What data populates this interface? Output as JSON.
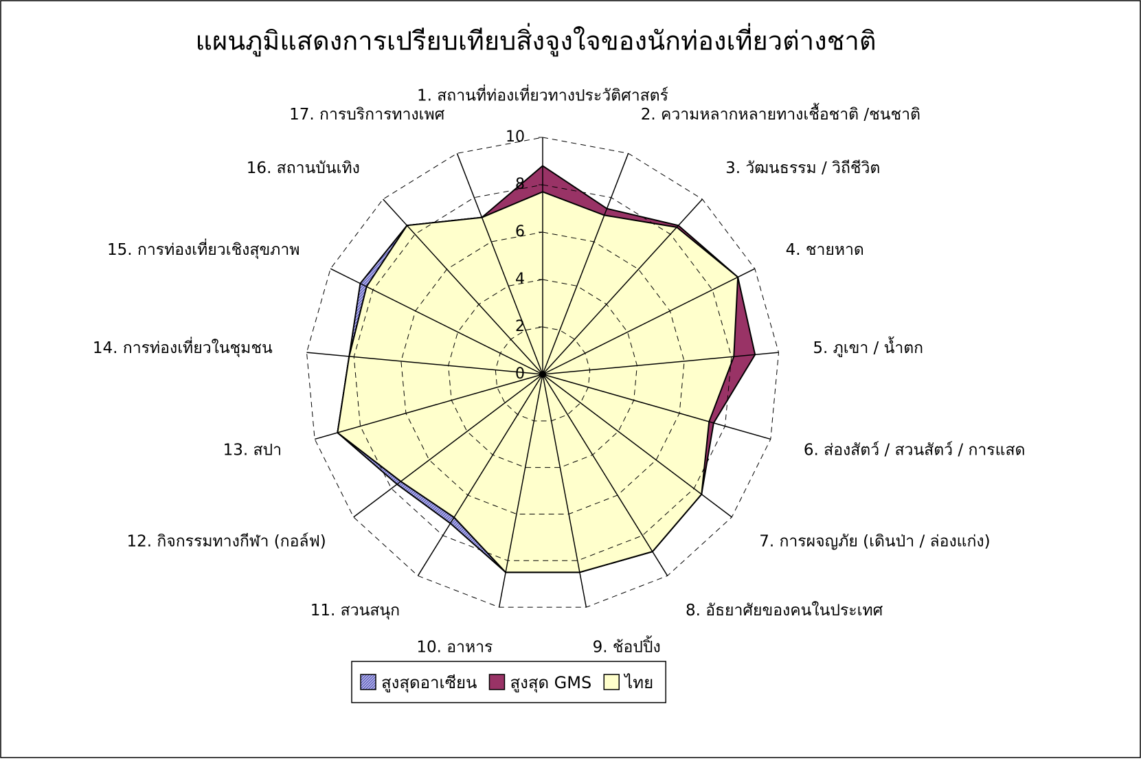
{
  "chart_data": {
    "type": "radar",
    "title": "แผนภูมิแสดงการเปรียบเทียบสิ่งจูงใจของนักท่องเที่ยวต่างชาติ",
    "categories": [
      "1. สถานที่ท่องเที่ยวทางประวัติศาสตร์",
      "2. ความหลากหลายทางเชื้อชาติ /ชนชาติ",
      "3. วัฒนธรรม / วิถีชีวิต",
      "4. ชายหาด",
      "5. ภูเขา / น้ำตก",
      "6. ส่องสัตว์ / สวนสัตว์ / การแสด",
      "7. การผจญภัย (เดินป่า / ล่องแก่ง)",
      "8. อัธยาศัยของคนในประเทศ",
      "9. ช้อปปิ้ง",
      "10. อาหาร",
      "11. สวนสนุก",
      "12. กิจกรรมทางกีฬา (กอล์ฟ)",
      "13. สปา",
      "14. การท่องเที่ยวในชุมชน",
      "15. การท่องเที่ยวเชิงสุขภาพ",
      "16. สถานบันเทิง",
      "17. การบริการทางเพศ"
    ],
    "series": [
      {
        "name": "สูงสุดอาเซียน",
        "color": "#b4b4e6",
        "values": [
          7.7,
          7.2,
          8.4,
          9.2,
          8.1,
          7.3,
          8.4,
          8.8,
          8.5,
          8.5,
          7.4,
          7.7,
          9.0,
          8.2,
          8.6,
          8.5,
          7.1
        ]
      },
      {
        "name": "สูงสุด GMS",
        "color": "#993366",
        "values": [
          8.8,
          7.5,
          8.5,
          9.2,
          9.0,
          7.5,
          8.4,
          8.8,
          8.5,
          8.5,
          7.1,
          7.5,
          9.0,
          8.2,
          8.3,
          8.5,
          7.1
        ]
      },
      {
        "name": "ไทย",
        "color": "#ffffcc",
        "values": [
          7.7,
          7.2,
          8.4,
          9.2,
          8.1,
          7.3,
          8.4,
          8.8,
          8.5,
          8.5,
          7.1,
          7.5,
          9.0,
          8.2,
          8.3,
          8.5,
          7.1
        ]
      }
    ],
    "ylim": [
      0,
      10
    ],
    "yticks": [
      0,
      2,
      4,
      6,
      8,
      10
    ],
    "grid": true,
    "legend": "bottom"
  }
}
